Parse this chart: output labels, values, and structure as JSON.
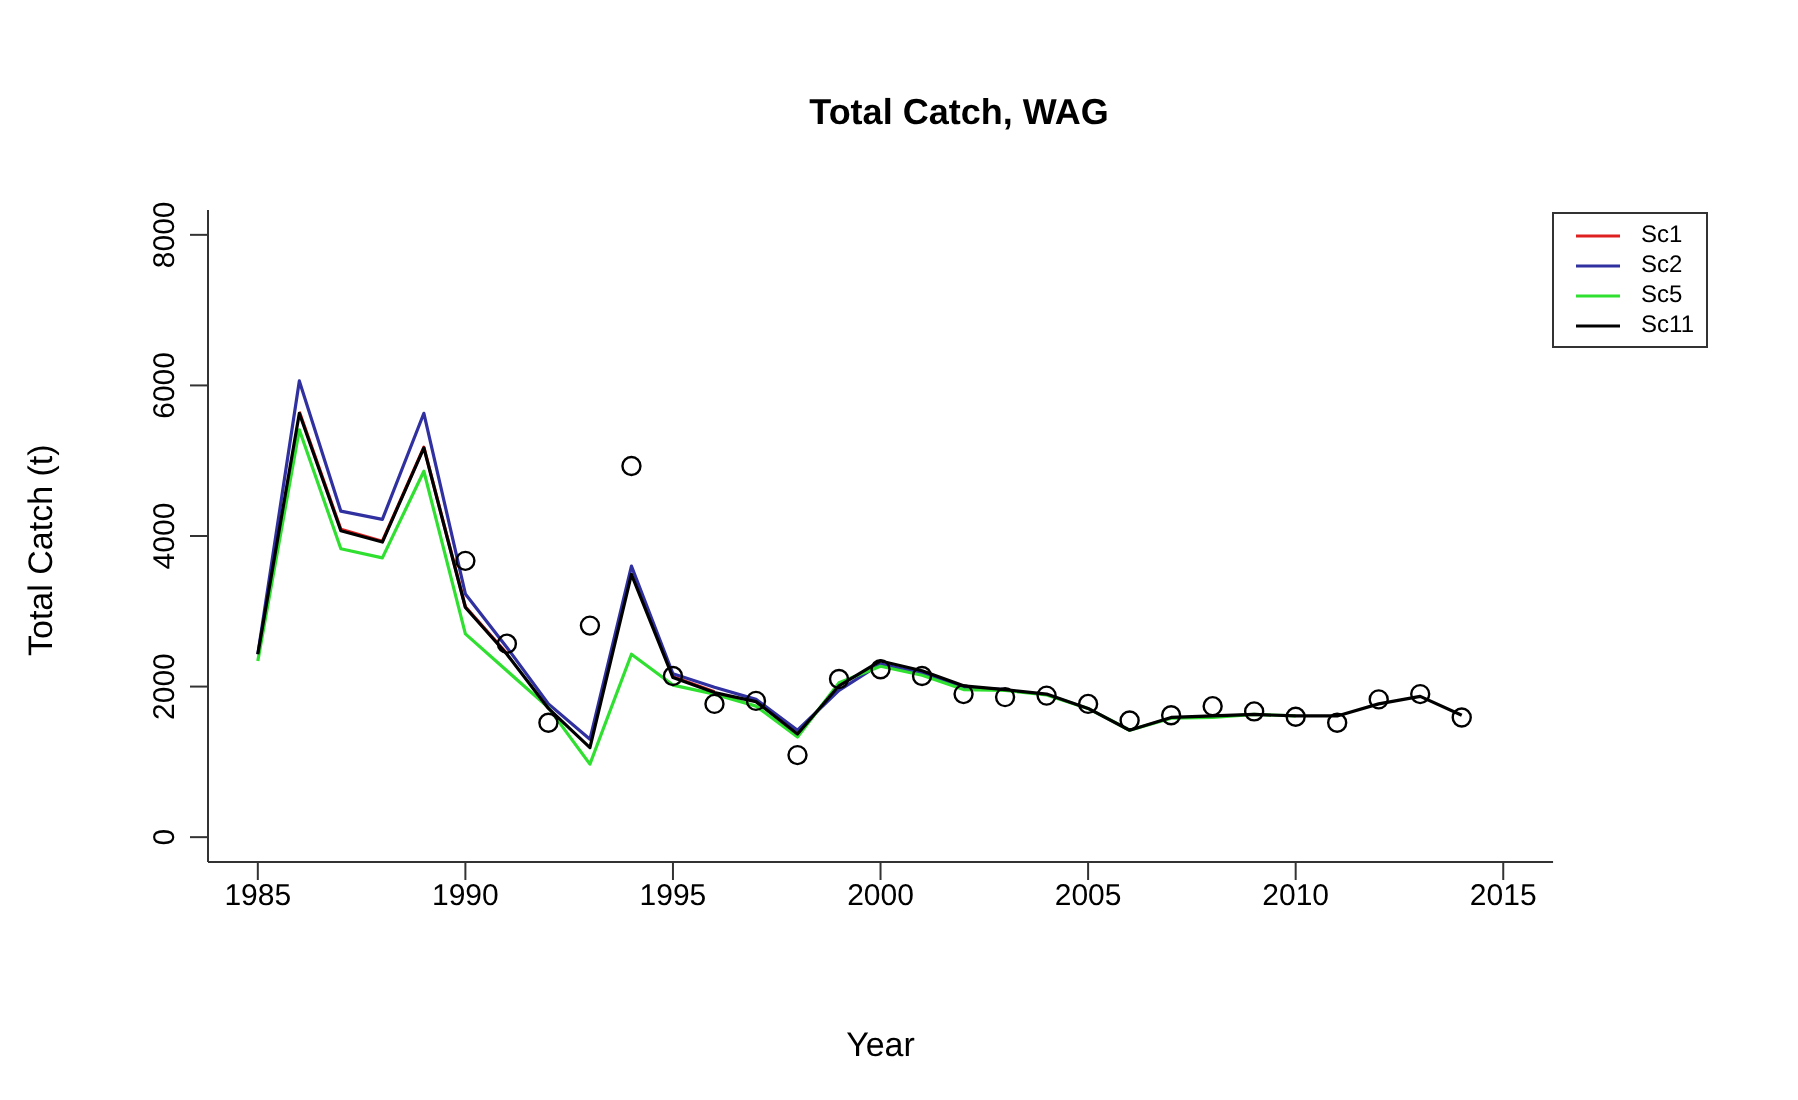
{
  "chart_data": {
    "type": "line",
    "title": "Total Catch, WAG",
    "xlabel": "Year",
    "ylabel": "Total Catch (t)",
    "x": [
      1985,
      1986,
      1987,
      1988,
      1989,
      1990,
      1991,
      1992,
      1993,
      1994,
      1995,
      1996,
      1997,
      1998,
      1999,
      2000,
      2001,
      2002,
      2003,
      2004,
      2005,
      2006,
      2007,
      2008,
      2009,
      2010,
      2011,
      2012,
      2013,
      2014
    ],
    "series": [
      {
        "name": "Sc1",
        "color": "#df2020",
        "values": [
          null,
          5650,
          4090,
          3930,
          5180,
          3060,
          2440,
          null,
          null,
          null,
          2130,
          1930,
          null,
          null,
          null,
          null,
          null,
          null,
          null,
          null,
          null,
          null,
          null,
          null,
          null,
          null,
          null,
          null,
          null,
          null
        ]
      },
      {
        "name": "Sc2",
        "color": "#3030a0",
        "values": [
          2430,
          6060,
          4330,
          4220,
          5630,
          3230,
          2520,
          1770,
          1300,
          3600,
          2170,
          1990,
          1830,
          1420,
          1950,
          2300,
          2180,
          1990,
          1960,
          null,
          null,
          null,
          null,
          null,
          null,
          null,
          null,
          null,
          null,
          null
        ]
      },
      {
        "name": "Sc5",
        "color": "#30e030",
        "values": [
          2340,
          5410,
          3830,
          3710,
          4860,
          2700,
          2210,
          1720,
          970,
          2430,
          2020,
          1900,
          1740,
          1330,
          2050,
          2270,
          2150,
          1960,
          1950,
          1890,
          1710,
          1420,
          1580,
          1590,
          1630,
          1610,
          null,
          null,
          null,
          null
        ]
      },
      {
        "name": "Sc11",
        "color": "#000000",
        "values": [
          2430,
          5630,
          4070,
          3920,
          5170,
          3050,
          2430,
          1710,
          1190,
          3490,
          2120,
          1920,
          1800,
          1370,
          2010,
          2340,
          2210,
          2010,
          1960,
          1900,
          1710,
          1420,
          1590,
          1610,
          1630,
          1610,
          1610,
          1770,
          1870,
          1620
        ]
      },
      {
        "type": "scatter",
        "color": "#000000",
        "marker": "circle",
        "x": [
          1990,
          1991,
          1992,
          1993,
          1994,
          1995,
          1996,
          1997,
          1998,
          1999,
          2000,
          2001,
          2002,
          2003,
          2004,
          2005,
          2006,
          2007,
          2008,
          2009,
          2010,
          2011,
          2012,
          2013,
          2014
        ],
        "values": [
          3670,
          2570,
          1520,
          2810,
          4930,
          2140,
          1770,
          1810,
          1090,
          2100,
          2230,
          2140,
          1900,
          1860,
          1880,
          1770,
          1550,
          1620,
          1740,
          1670,
          1600,
          1520,
          1830,
          1900,
          1590
        ]
      }
    ],
    "xlim": [
      1983.8,
      2016.2
    ],
    "xticks": [
      1985,
      1990,
      1995,
      2000,
      2005,
      2010,
      2015
    ],
    "ylim": [
      -330,
      8330
    ],
    "yticks": [
      0,
      2000,
      4000,
      6000,
      8000
    ],
    "legend": "top right",
    "marker": "none",
    "line_style": "solid"
  }
}
